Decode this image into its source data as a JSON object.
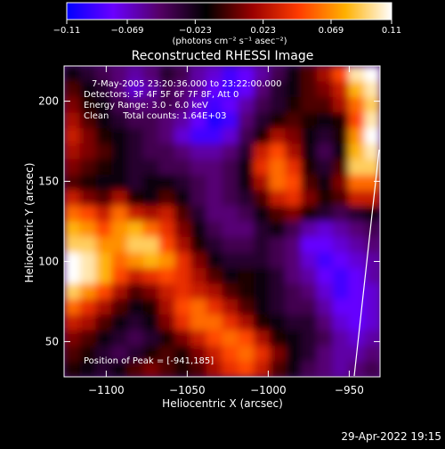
{
  "chart_data": {
    "type": "heatmap",
    "title": "Reconstructed RHESSI Image",
    "xlabel": "Heliocentric X (arcsec)",
    "ylabel": "Heliocentric Y (arcsec)",
    "xlim": [
      -1126,
      -931
    ],
    "ylim": [
      28,
      222
    ],
    "xticks": [
      -1100,
      -1050,
      -1000,
      -950
    ],
    "xtick_labels": [
      "−1100",
      "−1050",
      "−1000",
      "−950"
    ],
    "yticks": [
      50,
      100,
      150,
      200
    ],
    "ytick_labels": [
      "50",
      "100",
      "150",
      "200"
    ],
    "colorbar": {
      "range": [
        -0.11,
        0.11
      ],
      "ticks": [
        -0.11,
        -0.069,
        -0.023,
        0.023,
        0.069,
        0.11
      ],
      "tick_labels": [
        "−0.11",
        "−0.069",
        "−0.023",
        "0.023",
        "0.069",
        "0.11"
      ],
      "unit_label": "(photons cm⁻² s⁻¹ asec⁻²)",
      "stops": [
        "#0000ff",
        "#6a00ff",
        "#550066",
        "#000000",
        "#9a0000",
        "#ff3c00",
        "#ffb000",
        "#ffffff"
      ]
    },
    "annotations": [
      "7-May-2005 23:20:36.000 to 23:22:00.000",
      "Detectors: 3F 4F 5F 6F 7F 8F, Att 0",
      "Energy Range: 3.0 - 6.0 keV",
      "Clean     Total counts: 1.64E+03"
    ],
    "peak_label": "Position of Peak = [-941,185]",
    "peak": [
      -941,
      185
    ],
    "grid": false,
    "legend": "colorbar top",
    "rows": [
      [
        -0.02,
        -0.03,
        -0.04,
        -0.05,
        -0.06,
        -0.05,
        -0.03,
        -0.04,
        -0.06,
        -0.07,
        -0.09,
        -0.08,
        -0.06,
        -0.04,
        -0.02,
        0.0,
        0.02,
        0.05,
        0.1,
        0.11
      ],
      [
        0.0,
        -0.02,
        -0.03,
        -0.05,
        -0.07,
        -0.06,
        -0.04,
        -0.05,
        -0.06,
        -0.08,
        -0.09,
        -0.08,
        -0.05,
        -0.03,
        -0.02,
        0.0,
        0.01,
        0.03,
        0.08,
        0.1
      ],
      [
        0.01,
        -0.01,
        -0.02,
        -0.04,
        -0.05,
        -0.05,
        -0.04,
        -0.05,
        -0.07,
        -0.09,
        -0.08,
        -0.06,
        -0.04,
        -0.03,
        -0.01,
        0.0,
        0.0,
        0.02,
        0.06,
        0.09
      ],
      [
        0.02,
        0.0,
        -0.02,
        -0.03,
        -0.04,
        -0.04,
        -0.05,
        -0.06,
        -0.08,
        -0.1,
        -0.09,
        -0.05,
        -0.03,
        -0.01,
        0.0,
        -0.01,
        -0.02,
        -0.01,
        0.05,
        0.1
      ],
      [
        0.03,
        0.01,
        -0.01,
        -0.02,
        -0.03,
        -0.04,
        -0.05,
        -0.07,
        -0.09,
        -0.09,
        -0.07,
        -0.04,
        -0.01,
        0.02,
        0.01,
        -0.02,
        -0.03,
        -0.01,
        0.07,
        0.11
      ],
      [
        0.02,
        0.01,
        0.0,
        -0.02,
        -0.03,
        -0.04,
        -0.04,
        -0.05,
        -0.06,
        -0.06,
        -0.05,
        -0.03,
        0.03,
        0.05,
        0.02,
        -0.02,
        -0.04,
        -0.02,
        0.08,
        0.1
      ],
      [
        0.01,
        0.0,
        -0.01,
        -0.02,
        -0.03,
        -0.03,
        -0.04,
        -0.04,
        -0.05,
        -0.05,
        -0.04,
        -0.02,
        0.04,
        0.06,
        0.04,
        -0.01,
        -0.03,
        0.0,
        0.09,
        0.09
      ],
      [
        0.0,
        -0.01,
        -0.02,
        -0.02,
        -0.03,
        -0.02,
        -0.02,
        -0.03,
        -0.04,
        -0.05,
        -0.04,
        -0.02,
        0.02,
        0.06,
        0.05,
        0.0,
        -0.02,
        0.01,
        0.06,
        0.06
      ],
      [
        0.03,
        0.01,
        0.0,
        0.02,
        -0.01,
        -0.02,
        0.0,
        -0.02,
        -0.04,
        -0.05,
        -0.04,
        -0.03,
        0.0,
        0.03,
        0.04,
        0.01,
        -0.01,
        0.0,
        0.03,
        0.03
      ],
      [
        0.06,
        0.05,
        0.03,
        0.06,
        0.03,
        0.02,
        0.03,
        0.0,
        -0.03,
        -0.05,
        -0.05,
        -0.04,
        -0.02,
        0.0,
        0.01,
        -0.01,
        -0.03,
        -0.04,
        -0.03,
        -0.02
      ],
      [
        0.08,
        0.07,
        0.05,
        0.07,
        0.08,
        0.06,
        0.04,
        0.01,
        -0.02,
        -0.04,
        -0.05,
        -0.05,
        -0.03,
        -0.02,
        -0.04,
        -0.06,
        -0.07,
        -0.06,
        -0.05,
        -0.04
      ],
      [
        0.09,
        0.09,
        0.07,
        0.07,
        0.09,
        0.09,
        0.05,
        0.02,
        -0.01,
        -0.03,
        -0.04,
        -0.04,
        -0.03,
        -0.04,
        -0.05,
        -0.08,
        -0.08,
        -0.07,
        -0.06,
        -0.05
      ],
      [
        0.11,
        0.1,
        0.08,
        0.06,
        0.07,
        0.08,
        0.07,
        0.04,
        0.01,
        -0.02,
        -0.03,
        -0.03,
        -0.03,
        -0.04,
        -0.05,
        -0.07,
        -0.09,
        -0.08,
        -0.07,
        -0.06
      ],
      [
        0.11,
        0.1,
        0.08,
        0.05,
        0.03,
        0.04,
        0.05,
        0.04,
        0.02,
        0.0,
        -0.02,
        -0.01,
        -0.02,
        -0.03,
        -0.05,
        -0.06,
        -0.08,
        -0.09,
        -0.08,
        -0.06
      ],
      [
        0.09,
        0.07,
        0.05,
        0.02,
        0.0,
        0.01,
        0.03,
        0.04,
        0.03,
        0.02,
        0.0,
        -0.01,
        -0.02,
        -0.03,
        -0.04,
        -0.05,
        -0.07,
        -0.09,
        -0.08,
        -0.07
      ],
      [
        0.06,
        0.04,
        0.02,
        0.0,
        -0.02,
        -0.01,
        0.02,
        0.05,
        0.06,
        0.04,
        0.02,
        0.0,
        -0.02,
        -0.03,
        -0.04,
        -0.04,
        -0.06,
        -0.08,
        -0.08,
        -0.07
      ],
      [
        0.03,
        0.02,
        0.0,
        -0.02,
        -0.03,
        -0.02,
        0.01,
        0.04,
        0.06,
        0.06,
        0.04,
        0.02,
        -0.01,
        -0.02,
        -0.03,
        -0.03,
        -0.05,
        -0.07,
        -0.08,
        -0.07
      ],
      [
        0.01,
        0.0,
        -0.02,
        -0.03,
        -0.04,
        -0.03,
        -0.01,
        0.01,
        0.03,
        0.05,
        0.06,
        0.05,
        0.02,
        -0.01,
        -0.02,
        -0.03,
        -0.04,
        -0.06,
        -0.07,
        -0.06
      ],
      [
        0.0,
        -0.01,
        -0.03,
        -0.04,
        -0.03,
        -0.01,
        0.0,
        -0.01,
        0.01,
        0.03,
        0.05,
        0.06,
        0.04,
        0.01,
        -0.02,
        -0.03,
        -0.05,
        -0.06,
        -0.06,
        -0.05
      ],
      [
        -0.01,
        -0.02,
        -0.03,
        -0.02,
        0.0,
        0.01,
        0.0,
        -0.01,
        0.0,
        0.02,
        0.04,
        0.05,
        0.03,
        0.0,
        -0.02,
        -0.04,
        -0.05,
        -0.06,
        -0.05,
        -0.04
      ]
    ]
  },
  "footer": {
    "timestamp": "29-Apr-2022 19:15"
  }
}
